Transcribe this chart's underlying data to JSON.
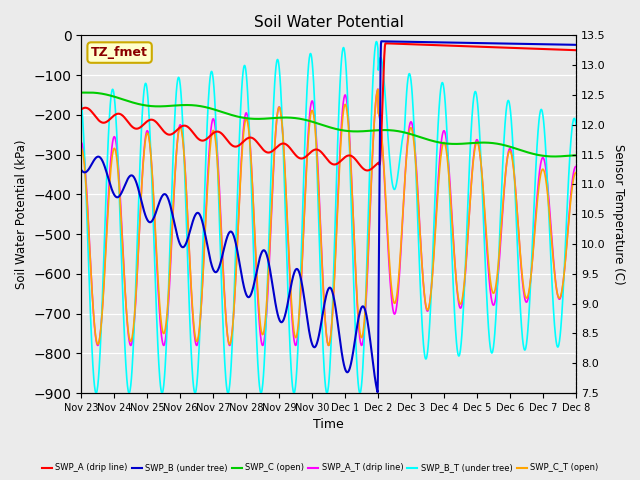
{
  "title": "Soil Water Potential",
  "ylabel_left": "Soil Water Potential (kPa)",
  "ylabel_right": "Sensor Temperature (C)",
  "xlabel": "Time",
  "ylim_left": [
    -900,
    0
  ],
  "ylim_right": [
    7.5,
    13.5
  ],
  "yticks_left": [
    -900,
    -800,
    -700,
    -600,
    -500,
    -400,
    -300,
    -200,
    -100,
    0
  ],
  "yticks_right": [
    7.5,
    8.0,
    8.5,
    9.0,
    9.5,
    10.0,
    10.5,
    11.0,
    11.5,
    12.0,
    12.5,
    13.0,
    13.5
  ],
  "background_color": "#ebebeb",
  "plot_bg_color": "#e8e8e8",
  "annotation_box": "TZ_fmet",
  "xticklabels": [
    "Nov 23",
    "Nov 24",
    "Nov 25",
    "Nov 26",
    "Nov 27",
    "Nov 28",
    "Nov 29",
    "Nov 30",
    "Dec 1",
    "Dec 2",
    "Dec 3",
    "Dec 4",
    "Dec 5",
    "Dec 6",
    "Dec 7",
    "Dec 8"
  ],
  "num_days": 15,
  "grid_color": "#ffffff",
  "figsize": [
    6.4,
    4.8
  ],
  "dpi": 100
}
